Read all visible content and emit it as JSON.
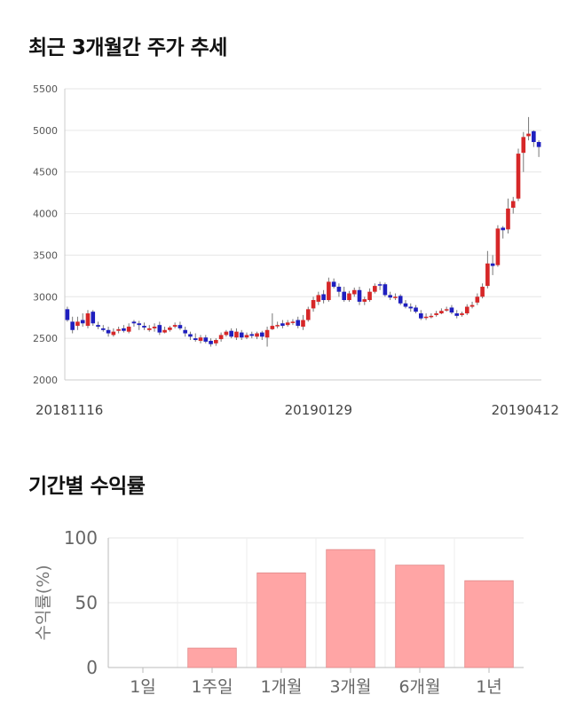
{
  "section1_title": "최근 3개월간 주가 추세",
  "section2_title": "기간별 수익률",
  "colors": {
    "up": "#d62728",
    "down": "#1f1fbf",
    "bar": "#ffa5a5",
    "grid": "#e6e6e6"
  },
  "chart_data": [
    {
      "type": "candlestick",
      "ylim": [
        2000,
        5500
      ],
      "yticks": [
        2000,
        2500,
        3000,
        3500,
        4000,
        4500,
        5000,
        5500
      ],
      "xtick_labels": [
        "20181116",
        "20190129",
        "20190412"
      ],
      "xtick_indices": [
        0,
        49,
        99
      ],
      "closes": [
        2720,
        2600,
        2700,
        2680,
        2800,
        2680,
        2640,
        2600,
        2560,
        2580,
        2610,
        2590,
        2640,
        2680,
        2660,
        2630,
        2620,
        2640,
        2570,
        2600,
        2630,
        2660,
        2620,
        2560,
        2520,
        2480,
        2510,
        2460,
        2430,
        2480,
        2540,
        2580,
        2520,
        2580,
        2510,
        2540,
        2530,
        2560,
        2520,
        2600,
        2650,
        2660,
        2650,
        2690,
        2700,
        2650,
        2720,
        2850,
        2960,
        3020,
        2960,
        3180,
        3120,
        3060,
        2960,
        3040,
        3080,
        2940,
        2970,
        3060,
        3130,
        3140,
        3020,
        2990,
        3000,
        2920,
        2880,
        2860,
        2820,
        2740,
        2760,
        2770,
        2800,
        2830,
        2850,
        2810,
        2770,
        2800,
        2880,
        2900,
        3000,
        3120,
        3400,
        3370,
        3820,
        3800,
        4060,
        4150,
        4720,
        4920,
        4960,
        4860,
        4800
      ],
      "opens": [
        2850,
        2700,
        2650,
        2720,
        2650,
        2820,
        2660,
        2620,
        2600,
        2540,
        2590,
        2620,
        2580,
        2700,
        2680,
        2650,
        2600,
        2620,
        2660,
        2570,
        2600,
        2640,
        2660,
        2600,
        2550,
        2500,
        2470,
        2510,
        2470,
        2440,
        2490,
        2540,
        2590,
        2510,
        2570,
        2510,
        2550,
        2520,
        2570,
        2510,
        2610,
        2650,
        2680,
        2660,
        2690,
        2720,
        2640,
        2720,
        2860,
        2940,
        3030,
        2960,
        3180,
        3120,
        3060,
        2960,
        3030,
        3080,
        2940,
        2960,
        3060,
        3150,
        3150,
        3020,
        2990,
        3010,
        2920,
        2880,
        2870,
        2800,
        2750,
        2760,
        2780,
        2800,
        2850,
        2870,
        2800,
        2780,
        2800,
        2880,
        2930,
        3000,
        3130,
        3400,
        3380,
        3830,
        3810,
        4070,
        4180,
        4730,
        4930,
        4990,
        4860
      ],
      "highs": [
        2880,
        2760,
        2760,
        2800,
        2840,
        2840,
        2700,
        2660,
        2640,
        2620,
        2640,
        2660,
        2680,
        2720,
        2710,
        2690,
        2660,
        2680,
        2700,
        2640,
        2650,
        2690,
        2700,
        2640,
        2580,
        2560,
        2540,
        2540,
        2500,
        2500,
        2570,
        2600,
        2620,
        2620,
        2600,
        2570,
        2580,
        2580,
        2590,
        2640,
        2800,
        2700,
        2720,
        2720,
        2730,
        2760,
        2780,
        2880,
        3000,
        3060,
        3080,
        3230,
        3220,
        3160,
        3120,
        3070,
        3110,
        3120,
        3000,
        3100,
        3160,
        3180,
        3170,
        3060,
        3040,
        3030,
        2960,
        2920,
        2900,
        2840,
        2800,
        2800,
        2830,
        2860,
        2880,
        2900,
        2840,
        2820,
        2910,
        2940,
        3040,
        3160,
        3550,
        3500,
        3860,
        3850,
        4180,
        4200,
        4780,
        4980,
        5160,
        5000,
        4880
      ],
      "lows": [
        2700,
        2560,
        2600,
        2640,
        2620,
        2650,
        2610,
        2580,
        2520,
        2520,
        2560,
        2570,
        2560,
        2640,
        2600,
        2600,
        2580,
        2580,
        2540,
        2560,
        2580,
        2620,
        2600,
        2520,
        2480,
        2460,
        2440,
        2440,
        2400,
        2410,
        2460,
        2520,
        2500,
        2480,
        2480,
        2490,
        2500,
        2490,
        2480,
        2400,
        2600,
        2620,
        2620,
        2640,
        2660,
        2620,
        2600,
        2700,
        2820,
        2900,
        2920,
        2940,
        3100,
        3000,
        2940,
        2940,
        3000,
        2900,
        2900,
        2940,
        3040,
        3080,
        3000,
        2960,
        2960,
        2900,
        2860,
        2820,
        2800,
        2720,
        2720,
        2740,
        2760,
        2790,
        2820,
        2790,
        2740,
        2760,
        2780,
        2860,
        2900,
        2980,
        3100,
        3260,
        3360,
        3700,
        3760,
        4000,
        4150,
        4500,
        4880,
        4800,
        4680
      ]
    },
    {
      "type": "bar",
      "categories": [
        "1일",
        "1주일",
        "1개월",
        "3개월",
        "6개월",
        "1년"
      ],
      "values": [
        0,
        15,
        73,
        91,
        79,
        67
      ],
      "ylabel": "수익률(%)",
      "ylim": [
        0,
        100
      ],
      "yticks": [
        0,
        50,
        100
      ]
    }
  ]
}
